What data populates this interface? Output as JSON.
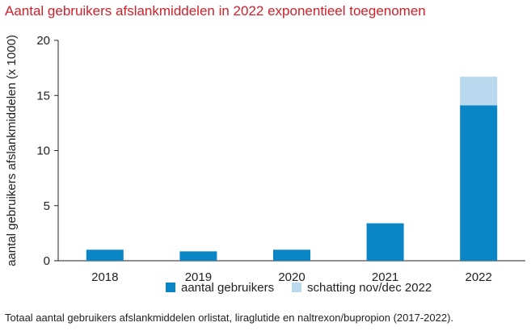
{
  "title": "Aantal gebruikers afslankmiddelen in 2022 exponentieel toegenomen",
  "caption": "Totaal aantal gebruikers afslankmiddelen orlistat, liraglutide en naltrexon/bupropion (2017-2022).",
  "colors": {
    "title": "#d0202a",
    "primary": "#0a86c7",
    "estimate": "#b9d9ef"
  },
  "chart_data": {
    "type": "bar",
    "stacked": true,
    "title": "Aantal gebruikers afslankmiddelen in 2022 exponentieel toegenomen",
    "xlabel": "",
    "ylabel": "aantal gebruikers afslankmiddelen (x 1000)",
    "categories": [
      "2018",
      "2019",
      "2020",
      "2021",
      "2022"
    ],
    "yticks": [
      "0",
      "5",
      "10",
      "15",
      "20"
    ],
    "ylim": [
      0,
      20
    ],
    "grid": false,
    "legend_position": "bottom",
    "series": [
      {
        "name": "aantal gebruikers",
        "values": [
          1.0,
          0.85,
          1.0,
          3.4,
          14.1
        ],
        "color": "#0a86c7"
      },
      {
        "name": "schatting nov/dec 2022",
        "values": [
          0,
          0,
          0,
          0,
          2.6
        ],
        "color": "#b9d9ef"
      }
    ]
  }
}
